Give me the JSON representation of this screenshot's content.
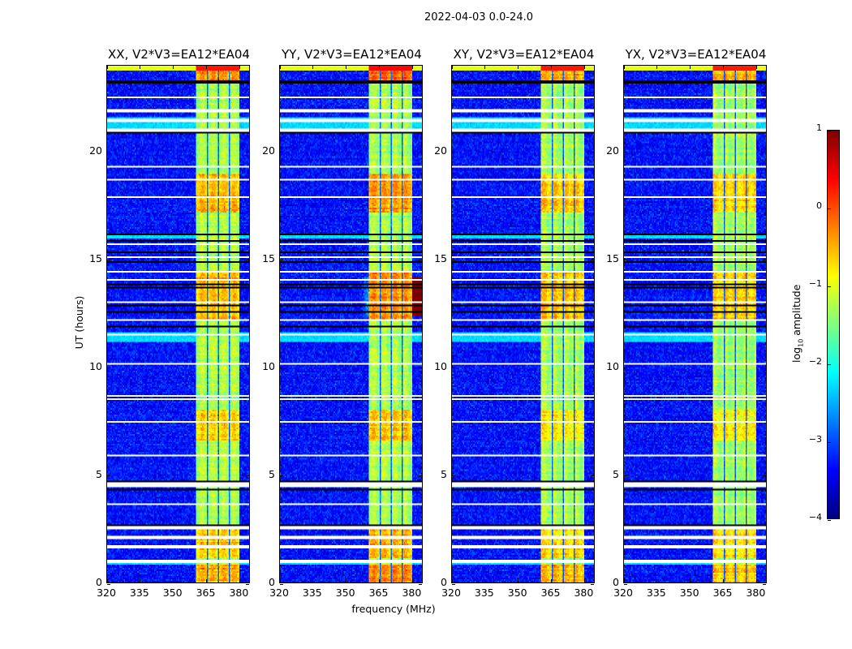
{
  "suptitle": "2022-04-03 0.0-24.0",
  "chart_data": {
    "type": "heatmap",
    "xlabel": "frequency (MHz)",
    "ylabel": "UT (hours)",
    "xlim": [
      320,
      385
    ],
    "ylim": [
      0,
      24
    ],
    "xticks": [
      320,
      335,
      350,
      365,
      380
    ],
    "yticks": [
      0,
      5,
      10,
      15,
      20
    ],
    "panels": [
      {
        "title": "XX, V2*V3=EA12*EA04",
        "hot_scale": 0.9
      },
      {
        "title": "YY, V2*V3=EA12*EA04",
        "hot_scale": 1.15
      },
      {
        "title": "XY, V2*V3=EA12*EA04",
        "hot_scale": 0.85
      },
      {
        "title": "YX, V2*V3=EA12*EA04",
        "hot_scale": 0.8
      }
    ],
    "colorbar": {
      "label_prefix": "log",
      "label_sub": "10",
      "label_suffix": " amplitude",
      "range": [
        -4,
        1
      ],
      "ticks": [
        1,
        0,
        -1,
        -2,
        -3,
        -4
      ],
      "tick_labels": [
        "1",
        "0",
        "−1",
        "−2",
        "−3",
        "−4"
      ],
      "colormap": "jet"
    },
    "background_log10_amplitude": -3.3,
    "bright_band_MHz": [
      361,
      380.6
    ],
    "subband_gaps_MHz": [
      366,
      371,
      376
    ],
    "band_level_log10": -1.3,
    "hot_intervals_hours": [
      [
        0,
        0.85,
        0.9
      ],
      [
        1.1,
        2.6,
        0.7
      ],
      [
        6.6,
        8.0,
        0.6
      ],
      [
        12.2,
        14.5,
        0.8
      ],
      [
        17.2,
        19.0,
        0.8
      ],
      [
        23.2,
        23.8,
        1.0
      ]
    ],
    "elevated_rows_hours": [
      [
        21.0,
        21.6
      ],
      [
        16.0,
        16.2
      ],
      [
        11.2,
        11.6
      ],
      [
        0.85,
        0.95
      ],
      [
        23.8,
        24.0
      ]
    ],
    "flagged_white_rows_hours": [
      22.54,
      21.9,
      21.45,
      21.0,
      19.34,
      18.74,
      17.88,
      15.74,
      15.14,
      14.42,
      14.08,
      13.03,
      12.17,
      11.49,
      10.14,
      8.68,
      8.49,
      7.44,
      5.9,
      4.58,
      4.47,
      3.64,
      2.55,
      2.1,
      1.65,
      0.98
    ],
    "zero_black_rows_hours": [
      23.28,
      20.88,
      16.15,
      15.89,
      15.36,
      14.91,
      13.86,
      13.67,
      12.85,
      12.55,
      11.87,
      4.7,
      4.32,
      2.67
    ]
  }
}
